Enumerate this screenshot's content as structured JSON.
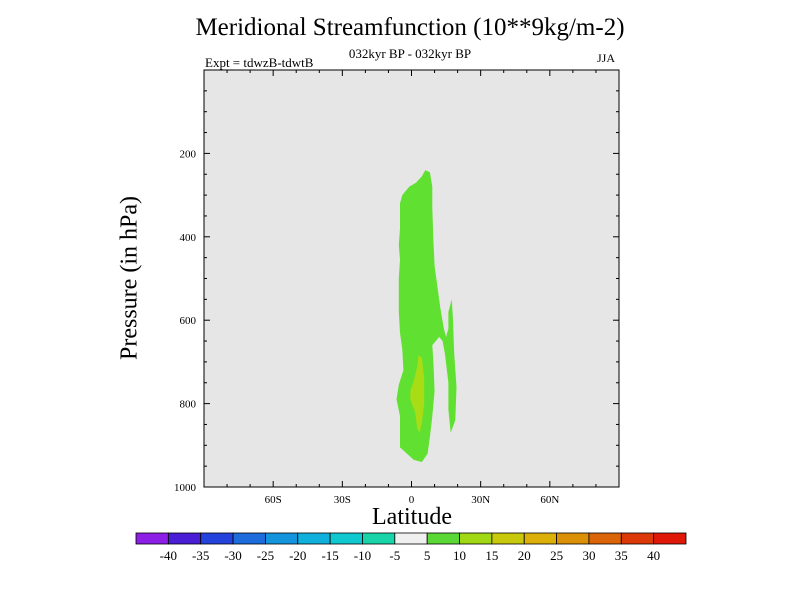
{
  "chart_data": {
    "type": "contour",
    "title": "Meridional Streamfunction (10**9kg/m-2)",
    "subtitle_left": "Expt = tdwzB-tdwtB",
    "subtitle_center": "032kyr BP - 032kyr BP",
    "subtitle_right": "JJA",
    "xlabel": "Latitude",
    "ylabel": "Pressure (in hPa)",
    "x_ticks": [
      "60S",
      "30S",
      "0",
      "30N",
      "60N"
    ],
    "x_tick_values": [
      -60,
      -30,
      0,
      30,
      60
    ],
    "xlim": [
      -90,
      90
    ],
    "y_ticks": [
      "200",
      "400",
      "600",
      "800",
      "1000"
    ],
    "y_tick_values": [
      200,
      400,
      600,
      800,
      1000
    ],
    "ylim": [
      0,
      1000
    ],
    "background_color": "#e6e6e6",
    "contours": [
      {
        "level": "5 to 10",
        "color": "#60e030",
        "points": [
          [
            -5.0,
            905
          ],
          [
            -5.0,
            830
          ],
          [
            -6.5,
            790
          ],
          [
            -5.5,
            755
          ],
          [
            -3.5,
            720
          ],
          [
            -4.0,
            670
          ],
          [
            -5.0,
            630
          ],
          [
            -5.5,
            580
          ],
          [
            -5.5,
            500
          ],
          [
            -5.0,
            455
          ],
          [
            -5.5,
            420
          ],
          [
            -5.0,
            380
          ],
          [
            -5.0,
            320
          ],
          [
            -4.0,
            300
          ],
          [
            -1.0,
            280
          ],
          [
            2.0,
            270
          ],
          [
            4.5,
            255
          ],
          [
            6.0,
            240
          ],
          [
            8.0,
            245
          ],
          [
            9.0,
            280
          ],
          [
            9.0,
            330
          ],
          [
            9.5,
            410
          ],
          [
            10.0,
            470
          ],
          [
            11.0,
            510
          ],
          [
            12.5,
            570
          ],
          [
            14.0,
            620
          ],
          [
            15.0,
            640
          ],
          [
            16.0,
            620
          ],
          [
            16.0,
            580
          ],
          [
            17.5,
            550
          ],
          [
            18.0,
            600
          ],
          [
            18.5,
            680
          ],
          [
            19.5,
            760
          ],
          [
            19.0,
            840
          ],
          [
            17.0,
            870
          ],
          [
            16.0,
            815
          ],
          [
            16.0,
            750
          ],
          [
            14.5,
            680
          ],
          [
            13.5,
            650
          ],
          [
            12.0,
            640
          ],
          [
            10.5,
            650
          ],
          [
            9.0,
            660
          ],
          [
            9.5,
            700
          ],
          [
            10.0,
            770
          ],
          [
            9.0,
            830
          ],
          [
            8.0,
            880
          ],
          [
            7.0,
            920
          ],
          [
            4.5,
            940
          ],
          [
            1.0,
            935
          ],
          [
            -2.0,
            920
          ]
        ]
      },
      {
        "level": "10 to 15",
        "color": "#a8dc14",
        "points": [
          [
            1.0,
            745
          ],
          [
            2.5,
            710
          ],
          [
            3.0,
            685
          ],
          [
            4.5,
            690
          ],
          [
            5.5,
            740
          ],
          [
            5.5,
            800
          ],
          [
            4.5,
            845
          ],
          [
            3.5,
            870
          ],
          [
            2.5,
            860
          ],
          [
            1.5,
            820
          ],
          [
            -0.5,
            790
          ],
          [
            -0.5,
            770
          ]
        ]
      }
    ],
    "colorbar": {
      "labels": [
        "-40",
        "-35",
        "-30",
        "-25",
        "-20",
        "-15",
        "-10",
        "-5",
        "5",
        "10",
        "15",
        "20",
        "25",
        "30",
        "35",
        "40"
      ],
      "colors": [
        "#8c1ee6",
        "#4a1ed4",
        "#2442dc",
        "#1c6cdc",
        "#1494dc",
        "#10b0dc",
        "#10c8d0",
        "#18d4a8",
        "#f0f0f0",
        "#5ad836",
        "#a0d814",
        "#c8c80c",
        "#dcb008",
        "#dc9008",
        "#dc6408",
        "#dc3808",
        "#e01808"
      ]
    }
  }
}
